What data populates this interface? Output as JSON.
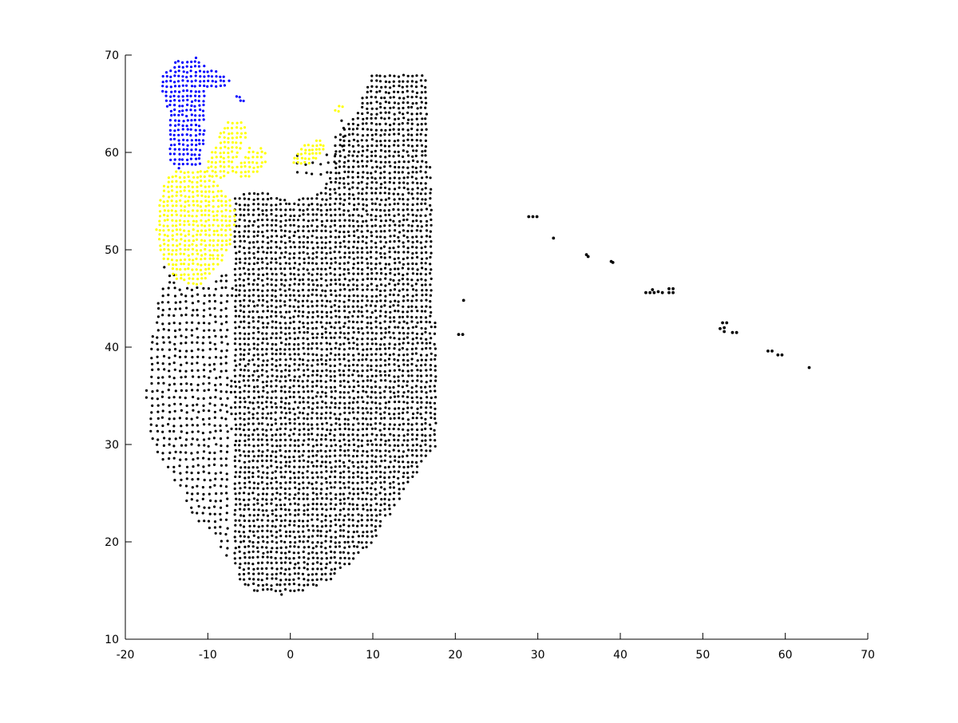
{
  "chart_data": {
    "type": "scatter",
    "title": "",
    "xlabel": "",
    "ylabel": "",
    "xlim": [
      -20,
      70
    ],
    "ylim": [
      10,
      70
    ],
    "x_ticks": [
      "-20",
      "-10",
      "0",
      "10",
      "20",
      "30",
      "40",
      "50",
      "60",
      "70"
    ],
    "y_ticks": [
      "10",
      "20",
      "30",
      "40",
      "50",
      "60",
      "70"
    ],
    "grid": false,
    "legend": "none",
    "colors": {
      "black": "#000000",
      "yellow": "#ffff00",
      "blue": "#0000ff"
    },
    "series": [
      {
        "color": "#000000",
        "regions": [
          {
            "type": "polygon",
            "step": 0.55,
            "polygon": [
              [
                -7,
                55.5
              ],
              [
                -3.5,
                56.2
              ],
              [
                0,
                55
              ],
              [
                4,
                56
              ],
              [
                6,
                62
              ],
              [
                8,
                64
              ],
              [
                10,
                68.3
              ],
              [
                12,
                68
              ],
              [
                16.5,
                68
              ],
              [
                17,
                58
              ],
              [
                17.6,
                41
              ],
              [
                18,
                30
              ],
              [
                16,
                28
              ],
              [
                10,
                20
              ],
              [
                5,
                16
              ],
              [
                0,
                14.5
              ],
              [
                -4,
                14.8
              ],
              [
                -6.5,
                16
              ],
              [
                -7,
                20
              ],
              [
                -7.2,
                35
              ],
              [
                -7,
                45
              ],
              [
                -7,
                52
              ]
            ]
          },
          {
            "type": "polygon",
            "step": 0.7,
            "polygon": [
              [
                -16.5,
                49.5
              ],
              [
                -13,
                46.5
              ],
              [
                -10,
                46
              ],
              [
                -8,
                48
              ],
              [
                -7,
                46
              ],
              [
                -7.5,
                40
              ],
              [
                -7.2,
                30
              ],
              [
                -7.5,
                18
              ],
              [
                -9,
                20
              ],
              [
                -12,
                23
              ],
              [
                -14.5,
                27
              ],
              [
                -16.8,
                30
              ],
              [
                -17.5,
                35
              ],
              [
                -17,
                40
              ],
              [
                -16.5,
                44
              ],
              [
                -15,
                47
              ]
            ]
          },
          {
            "type": "polygon",
            "step": 0.9,
            "polygon": [
              [
                0,
                60
              ],
              [
                3,
                59
              ],
              [
                5,
                61
              ],
              [
                6,
                64
              ],
              [
                7,
                63
              ],
              [
                6,
                59
              ],
              [
                4,
                57
              ],
              [
                1,
                57.5
              ]
            ]
          }
        ],
        "points": [
          [
            21,
            44.8
          ],
          [
            20.4,
            41.3
          ],
          [
            20.9,
            41.3
          ],
          [
            28.9,
            53.4
          ],
          [
            29.4,
            53.4
          ],
          [
            29.9,
            53.4
          ],
          [
            31.9,
            51.2
          ],
          [
            36.1,
            49.3
          ],
          [
            35.9,
            49.5
          ],
          [
            39.1,
            48.7
          ],
          [
            38.9,
            48.8
          ],
          [
            43.1,
            45.6
          ],
          [
            43.6,
            45.6
          ],
          [
            44.1,
            45.6
          ],
          [
            44.6,
            45.7
          ],
          [
            43.9,
            45.9
          ],
          [
            45.1,
            45.6
          ],
          [
            45.9,
            45.6
          ],
          [
            46.4,
            45.6
          ],
          [
            45.9,
            46.0
          ],
          [
            46.4,
            46.0
          ],
          [
            52.1,
            41.9
          ],
          [
            52.6,
            41.6
          ],
          [
            52.9,
            42.5
          ],
          [
            53.6,
            41.5
          ],
          [
            54.1,
            41.5
          ],
          [
            52.4,
            42.5
          ],
          [
            52.6,
            42.0
          ],
          [
            57.9,
            39.6
          ],
          [
            58.4,
            39.6
          ],
          [
            59.1,
            39.2
          ],
          [
            59.6,
            39.2
          ],
          [
            62.9,
            37.9
          ]
        ]
      },
      {
        "color": "#ffff00",
        "regions": [
          {
            "type": "polygon",
            "step": 0.5,
            "polygon": [
              [
                -16,
                50
              ],
              [
                -14,
                47
              ],
              [
                -11.5,
                46
              ],
              [
                -10,
                47
              ],
              [
                -8.5,
                48.5
              ],
              [
                -7,
                51
              ],
              [
                -6.5,
                54
              ],
              [
                -8,
                56
              ],
              [
                -10,
                58
              ],
              [
                -13,
                58.3
              ],
              [
                -15,
                57.8
              ],
              [
                -15.8,
                55
              ],
              [
                -16.3,
                52
              ]
            ]
          },
          {
            "type": "polygon",
            "step": 0.5,
            "polygon": [
              [
                -10.5,
                58
              ],
              [
                -9,
                61
              ],
              [
                -8,
                63
              ],
              [
                -6,
                63.6
              ],
              [
                -5,
                62
              ],
              [
                -6,
                60
              ],
              [
                -7,
                58
              ],
              [
                -8.5,
                57
              ]
            ]
          },
          {
            "type": "polygon",
            "step": 0.5,
            "polygon": [
              [
                -7,
                58
              ],
              [
                -5,
                60.5
              ],
              [
                -3,
                60.5
              ],
              [
                -3,
                58.5
              ],
              [
                -5.5,
                57
              ]
            ]
          },
          {
            "type": "polygon",
            "step": 0.45,
            "polygon": [
              [
                0,
                59
              ],
              [
                1.5,
                60.8
              ],
              [
                4,
                61.6
              ],
              [
                4.2,
                60
              ],
              [
                3,
                59
              ],
              [
                1,
                58.5
              ]
            ]
          },
          {
            "type": "polygon",
            "step": 0.45,
            "polygon": [
              [
                5,
                64
              ],
              [
                6,
                65.2
              ],
              [
                6.5,
                64.5
              ],
              [
                6,
                63.8
              ]
            ]
          }
        ],
        "points": []
      },
      {
        "color": "#0000ff",
        "regions": [
          {
            "type": "polygon",
            "step": 0.5,
            "polygon": [
              [
                -15.5,
                68
              ],
              [
                -13.5,
                69.6
              ],
              [
                -11.5,
                69.8
              ],
              [
                -9.5,
                68.5
              ],
              [
                -7,
                67.6
              ],
              [
                -8,
                66.7
              ],
              [
                -10,
                66.5
              ],
              [
                -10.5,
                64
              ],
              [
                -10.3,
                61
              ],
              [
                -11,
                58.5
              ],
              [
                -13.5,
                58.3
              ],
              [
                -15,
                59.5
              ],
              [
                -14.5,
                62
              ],
              [
                -15,
                65
              ],
              [
                -16,
                67
              ]
            ]
          },
          {
            "type": "polygon",
            "step": 0.45,
            "polygon": [
              [
                -7,
                65.5
              ],
              [
                -6,
                66.2
              ],
              [
                -5.5,
                65.5
              ],
              [
                -6,
                64.8
              ]
            ]
          }
        ],
        "points": []
      }
    ]
  }
}
